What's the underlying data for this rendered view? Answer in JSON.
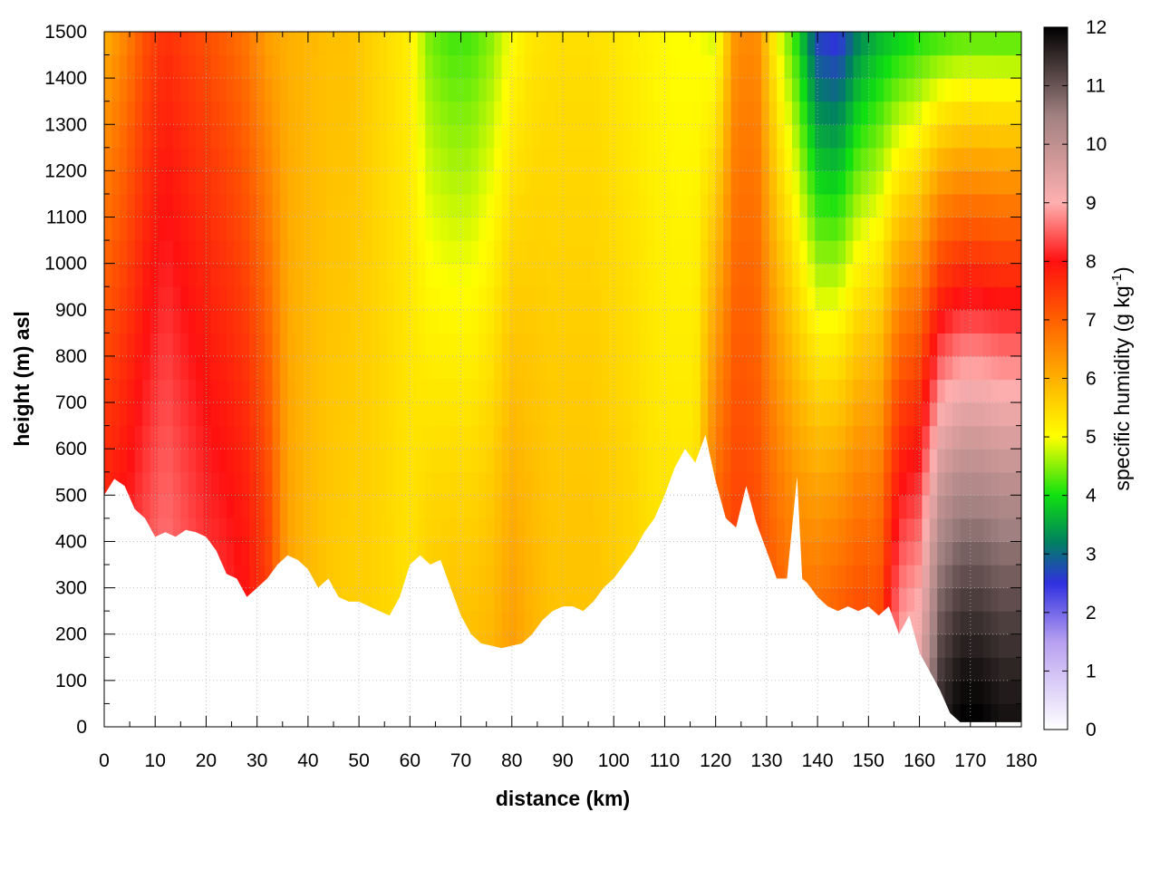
{
  "chart_data": {
    "type": "heatmap",
    "xlabel": "distance (km)",
    "ylabel": "height (m) asl",
    "colorbar_label": "specific humidity (g kg",
    "colorbar_label_superscript": "-1",
    "colorbar_label_close": ")",
    "xlim": [
      0,
      180
    ],
    "ylim": [
      0,
      1500
    ],
    "zlim": [
      0,
      12
    ],
    "x_ticks": [
      "0",
      "10",
      "20",
      "30",
      "40",
      "50",
      "60",
      "70",
      "80",
      "90",
      "100",
      "110",
      "120",
      "130",
      "140",
      "150",
      "160",
      "170",
      "180"
    ],
    "y_ticks": [
      "0",
      "100",
      "200",
      "300",
      "400",
      "500",
      "600",
      "700",
      "800",
      "900",
      "1000",
      "1100",
      "1200",
      "1300",
      "1400",
      "1500"
    ],
    "cb_ticks": [
      "0",
      "1",
      "2",
      "3",
      "4",
      "5",
      "6",
      "7",
      "8",
      "9",
      "10",
      "11",
      "12"
    ],
    "grid": true,
    "colormap": [
      {
        "v": 0,
        "color": "#ffffff"
      },
      {
        "v": 1.5,
        "color": "#b8a0f0"
      },
      {
        "v": 2.5,
        "color": "#3030e0"
      },
      {
        "v": 3.2,
        "color": "#008060"
      },
      {
        "v": 4,
        "color": "#10e010"
      },
      {
        "v": 5,
        "color": "#ffff00"
      },
      {
        "v": 6,
        "color": "#ffb000"
      },
      {
        "v": 7,
        "color": "#ff6000"
      },
      {
        "v": 8,
        "color": "#ff1010"
      },
      {
        "v": 9,
        "color": "#ffb0b0"
      },
      {
        "v": 10.5,
        "color": "#a08080"
      },
      {
        "v": 12,
        "color": "#000000"
      }
    ],
    "terrain_km": [
      0,
      2,
      4,
      6,
      8,
      10,
      12,
      14,
      16,
      18,
      20,
      22,
      24,
      26,
      28,
      30,
      32,
      34,
      36,
      38,
      40,
      42,
      44,
      46,
      48,
      50,
      52,
      54,
      56,
      58,
      60,
      62,
      64,
      66,
      68,
      70,
      72,
      74,
      76,
      78,
      80,
      82,
      84,
      86,
      88,
      90,
      92,
      94,
      96,
      98,
      100,
      102,
      104,
      106,
      108,
      110,
      112,
      114,
      116,
      118,
      120,
      122,
      124,
      126,
      128,
      130,
      132,
      134,
      136,
      137,
      138,
      140,
      142,
      144,
      146,
      148,
      150,
      152,
      154,
      156,
      158,
      160,
      162,
      164,
      166,
      168,
      170,
      172,
      174,
      176,
      178,
      180
    ],
    "terrain_m": [
      500,
      535,
      520,
      470,
      450,
      410,
      420,
      410,
      425,
      420,
      410,
      380,
      330,
      320,
      280,
      300,
      320,
      350,
      370,
      360,
      340,
      300,
      320,
      280,
      270,
      270,
      260,
      250,
      240,
      280,
      350,
      370,
      350,
      360,
      300,
      240,
      200,
      180,
      175,
      170,
      175,
      180,
      200,
      230,
      250,
      260,
      260,
      250,
      270,
      300,
      320,
      350,
      380,
      420,
      450,
      500,
      560,
      600,
      570,
      630,
      530,
      450,
      430,
      520,
      440,
      380,
      320,
      320,
      540,
      320,
      310,
      280,
      260,
      250,
      260,
      250,
      260,
      240,
      260,
      200,
      240,
      160,
      120,
      80,
      30,
      10,
      10,
      10,
      10,
      10,
      10,
      10
    ],
    "columns_km": [
      0,
      4,
      8,
      12,
      16,
      20,
      24,
      28,
      32,
      36,
      40,
      44,
      48,
      52,
      56,
      60,
      64,
      68,
      72,
      76,
      80,
      84,
      88,
      92,
      96,
      100,
      104,
      108,
      112,
      116,
      120,
      124,
      128,
      132,
      136,
      140,
      144,
      148,
      152,
      156,
      160,
      164,
      168,
      172,
      176,
      180
    ],
    "columns_q_surface": [
      8.2,
      8.4,
      8.6,
      8.8,
      8.6,
      8.4,
      8.3,
      8.1,
      7.6,
      6.2,
      5.9,
      5.7,
      5.6,
      5.6,
      5.5,
      5.4,
      5.8,
      5.9,
      5.9,
      6.0,
      6.3,
      6.0,
      5.8,
      5.8,
      5.8,
      5.7,
      5.6,
      5.4,
      5.4,
      5.4,
      7.4,
      7.6,
      7.4,
      7.2,
      7.0,
      7.2,
      7.4,
      7.6,
      7.5,
      9.2,
      9.5,
      11.5,
      12.0,
      12.0,
      11.8,
      11.8
    ],
    "columns_q_top": [
      6.0,
      6.5,
      7.2,
      7.6,
      7.4,
      7.2,
      7.0,
      6.7,
      6.2,
      6.0,
      5.9,
      5.8,
      5.8,
      5.6,
      5.4,
      5.2,
      4.4,
      4.2,
      4.2,
      4.5,
      5.0,
      5.3,
      5.4,
      5.4,
      5.4,
      5.3,
      5.2,
      5.1,
      5.0,
      5.0,
      4.8,
      6.4,
      6.5,
      5.0,
      4.0,
      2.6,
      2.4,
      3.2,
      3.6,
      3.8,
      4.0,
      4.1,
      4.2,
      4.2,
      4.2,
      4.2
    ]
  }
}
